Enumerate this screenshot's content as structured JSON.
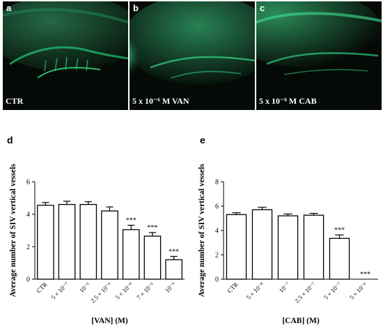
{
  "panels": [
    {
      "letter": "a",
      "caption": "CTR"
    },
    {
      "letter": "b",
      "caption": "5 x 10⁻⁶ M VAN"
    },
    {
      "letter": "c",
      "caption": "5 x 10⁻⁶ M CAB"
    }
  ],
  "colors": {
    "fluorescence": "#1fd27a",
    "bar_fill": "#ffffff",
    "bar_stroke": "#000000"
  },
  "chart_data": [
    {
      "panel_letter": "d",
      "type": "bar",
      "ylabel": "Average number of SIV vertical vessels",
      "xlabel": "[VAN] (M)",
      "ylim": [
        0,
        6
      ],
      "yticks": [
        "0",
        "2",
        "4",
        "6"
      ],
      "categories": [
        "CTR",
        "5 × 10⁻⁷",
        "10⁻⁶",
        "2.5 × 10⁻⁶",
        "5 × 10⁻⁶",
        "7 × 10⁻⁶",
        "10⁻⁵"
      ],
      "values": [
        4.55,
        4.6,
        4.6,
        4.2,
        3.05,
        2.65,
        1.2
      ],
      "errors": [
        0.17,
        0.2,
        0.17,
        0.25,
        0.27,
        0.22,
        0.2
      ],
      "annotations": [
        "",
        "",
        "",
        "",
        "***",
        "***",
        "***"
      ]
    },
    {
      "panel_letter": "e",
      "type": "bar",
      "ylabel": "Average number of SIV vertical vessels",
      "xlabel": "[CAB] (M)",
      "ylim": [
        0,
        8
      ],
      "yticks": [
        "0",
        "2",
        "4",
        "6",
        "8"
      ],
      "categories": [
        "CTR",
        "5 × 10⁻⁸",
        "10⁻⁷",
        "2.5 × 10⁻⁷",
        "5 × 10⁻⁷",
        "5 × 10⁻⁶"
      ],
      "values": [
        5.3,
        5.7,
        5.2,
        5.25,
        3.35,
        0
      ],
      "errors": [
        0.15,
        0.2,
        0.15,
        0.15,
        0.28,
        0
      ],
      "annotations": [
        "",
        "",
        "",
        "",
        "***",
        "***"
      ]
    }
  ]
}
